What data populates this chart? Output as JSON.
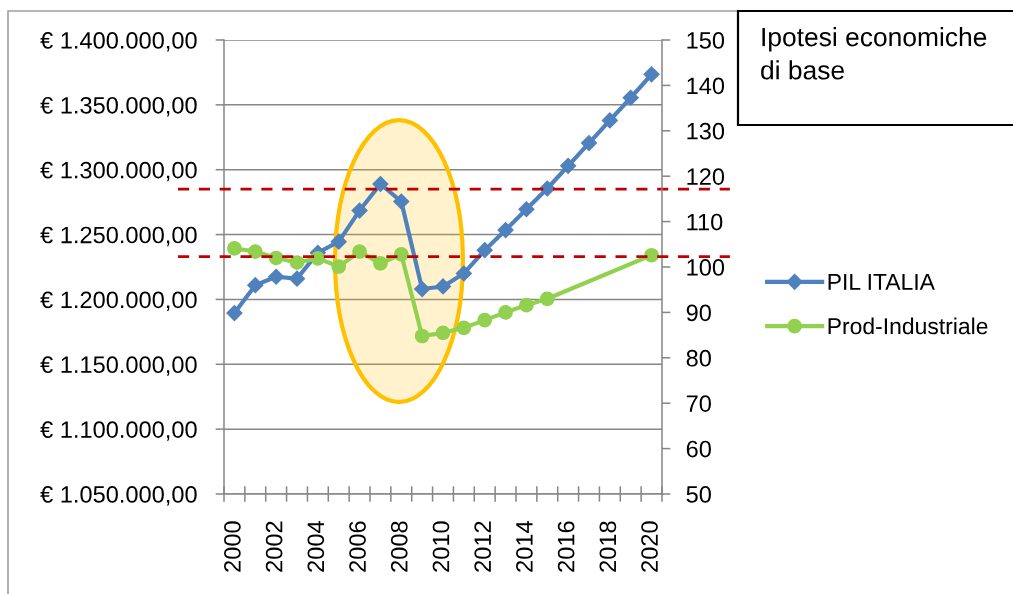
{
  "chart_data": {
    "type": "line",
    "title": "Ipotesi economiche di base",
    "categories": [
      "2000",
      null,
      "2002",
      null,
      "2004",
      null,
      "2006",
      null,
      "2008",
      null,
      "2010",
      null,
      "2012",
      null,
      "2014",
      null,
      "2016",
      null,
      "2018",
      null,
      "2020"
    ],
    "series": [
      {
        "name": "PIL ITALIA",
        "color": "#4f81bd",
        "marker": "diamond",
        "values": [
          1189500,
          1211000,
          1217500,
          1216000,
          1236000,
          1244500,
          1268500,
          1289000,
          1275500,
          1208000,
          1210000,
          1220000,
          1238000,
          1253500,
          1269500,
          1285500,
          1303000,
          1320500,
          1338000,
          1355500,
          1373500
        ]
      },
      {
        "name": "Prod-Industriale",
        "color": "#92d050",
        "marker": "circle",
        "axis": "y2",
        "values": [
          104.1,
          103.4,
          102.0,
          101.0,
          101.9,
          100.1,
          103.4,
          100.8,
          102.8,
          84.8,
          85.5,
          86.6,
          88.3,
          90.0,
          91.6,
          93.0,
          null,
          null,
          null,
          null,
          102.6
        ]
      }
    ],
    "ylim": [
      1050000,
      1400000
    ],
    "yticks": [
      {
        "value": 1050000,
        "label": "€ 1.050.000,00"
      },
      {
        "value": 1100000,
        "label": "€ 1.100.000,00"
      },
      {
        "value": 1150000,
        "label": "€ 1.150.000,00"
      },
      {
        "value": 1200000,
        "label": "€ 1.200.000,00"
      },
      {
        "value": 1250000,
        "label": "€ 1.250.000,00"
      },
      {
        "value": 1300000,
        "label": "€ 1.300.000,00"
      },
      {
        "value": 1350000,
        "label": "€ 1.350.000,00"
      },
      {
        "value": 1400000,
        "label": "€ 1.400.000,00"
      }
    ],
    "y2lim": [
      50,
      150
    ],
    "y2ticks": [
      50,
      60,
      70,
      80,
      90,
      100,
      110,
      120,
      130,
      140,
      150
    ],
    "ref_lines": [
      {
        "axis": "y",
        "value": 1285000,
        "color": "#c00000",
        "line_style": "dashed"
      },
      {
        "axis": "y2",
        "value": 102.3,
        "color": "#c00000",
        "line_style": "dashed"
      }
    ],
    "grid": "y",
    "legend": "right"
  }
}
